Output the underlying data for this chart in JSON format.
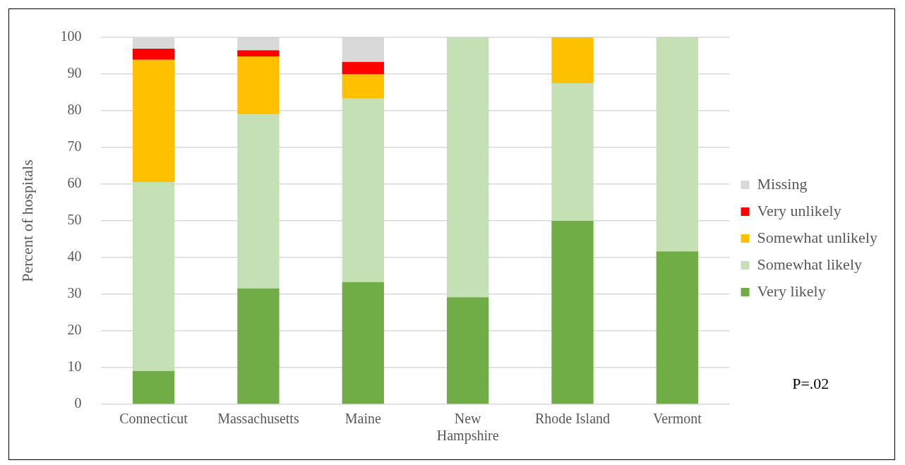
{
  "chart_data": {
    "type": "bar",
    "stacked": true,
    "ylabel": "Percent of hospitals",
    "categories": [
      "Connecticut",
      "Massachusetts",
      "Maine",
      "New Hampshire",
      "Rhode Island",
      "Vermont"
    ],
    "series": [
      {
        "name": "Very likely",
        "color": "#70ad47",
        "values": [
          9.1,
          31.6,
          33.3,
          29.2,
          50,
          41.7
        ]
      },
      {
        "name": "Somewhat likely",
        "color": "#c5e0b4",
        "values": [
          51.5,
          47.4,
          50,
          70.8,
          37.5,
          58.3
        ]
      },
      {
        "name": "Somewhat unlikely",
        "color": "#ffc000",
        "values": [
          33.3,
          15.8,
          6.7,
          null,
          12.5,
          null
        ]
      },
      {
        "name": "Very unlikely",
        "color": "#ff0000",
        "values": [
          3.0,
          1.7,
          3.3,
          null,
          null,
          null
        ]
      },
      {
        "name": "Missing",
        "color": "#d9d9d9",
        "values": [
          3.0,
          3.5,
          6.7,
          null,
          null,
          null
        ]
      }
    ],
    "ylim": [
      0,
      100
    ],
    "yticks": [
      0,
      10,
      20,
      30,
      40,
      50,
      60,
      70,
      80,
      90,
      100
    ],
    "grid": "y",
    "legend": "right",
    "annotations": [
      "P=.02"
    ]
  }
}
